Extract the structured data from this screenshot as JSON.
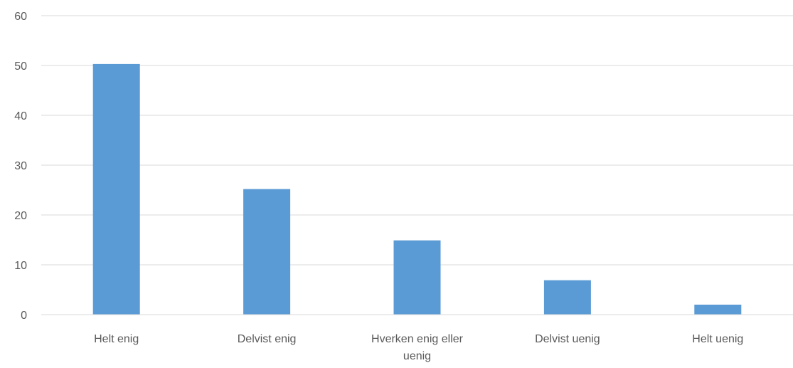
{
  "chart_data": {
    "type": "bar",
    "categories": [
      "Helt enig",
      "Delvist enig",
      "Hverken enig eller uenig",
      "Delvist uenig",
      "Helt uenig"
    ],
    "category_lines": [
      [
        "Helt enig"
      ],
      [
        "Delvist enig"
      ],
      [
        "Hverken enig eller",
        "uenig"
      ],
      [
        "Delvist uenig"
      ],
      [
        "Helt uenig"
      ]
    ],
    "values": [
      50.3,
      25.2,
      14.9,
      6.9,
      2.0
    ],
    "ylim": [
      0,
      60
    ],
    "yticks": [
      "0",
      "10",
      "20",
      "30",
      "40",
      "50",
      "60"
    ],
    "grid": true,
    "legend": "none",
    "bar_color": "#5b9bd5"
  }
}
